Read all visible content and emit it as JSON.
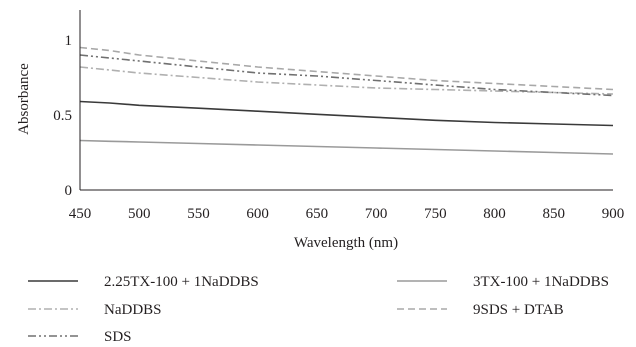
{
  "chart_data": {
    "type": "line",
    "title": "",
    "xlabel": "Wavelength (nm)",
    "ylabel": "Absorbance",
    "xlim": [
      450,
      900
    ],
    "ylim": [
      0,
      1.2
    ],
    "x_ticks": [
      450,
      500,
      550,
      600,
      650,
      700,
      750,
      800,
      850,
      900
    ],
    "y_ticks": [
      0,
      0.5,
      1
    ],
    "y_tick_labels": [
      "0",
      "0.5",
      "1"
    ],
    "grid": false,
    "legend_position": "bottom",
    "x": [
      450,
      475,
      500,
      550,
      600,
      650,
      700,
      750,
      800,
      850,
      900
    ],
    "series": [
      {
        "name": "2.25TX-100 + 1NaDDBS",
        "color": "#3a3a3a",
        "dash": "solid",
        "values": [
          0.59,
          0.58,
          0.565,
          0.545,
          0.525,
          0.505,
          0.485,
          0.465,
          0.45,
          0.44,
          0.43
        ]
      },
      {
        "name": "3TX-100 + 1NaDDBS",
        "color": "#9a9a9a",
        "dash": "solid",
        "values": [
          0.33,
          0.325,
          0.32,
          0.31,
          0.3,
          0.29,
          0.28,
          0.27,
          0.26,
          0.25,
          0.24
        ]
      },
      {
        "name": "NaDDBS",
        "color": "#b0b0b0",
        "dash": "dash-dot",
        "values": [
          0.82,
          0.8,
          0.78,
          0.75,
          0.72,
          0.7,
          0.68,
          0.67,
          0.66,
          0.65,
          0.64
        ]
      },
      {
        "name": "9SDS + DTAB",
        "color": "#a8a8a8",
        "dash": "dash",
        "values": [
          0.95,
          0.93,
          0.9,
          0.86,
          0.82,
          0.79,
          0.76,
          0.73,
          0.71,
          0.69,
          0.67
        ]
      },
      {
        "name": "SDS",
        "color": "#707070",
        "dash": "dash-dot-dot",
        "values": [
          0.9,
          0.88,
          0.86,
          0.82,
          0.78,
          0.76,
          0.73,
          0.7,
          0.67,
          0.65,
          0.63
        ]
      }
    ]
  }
}
